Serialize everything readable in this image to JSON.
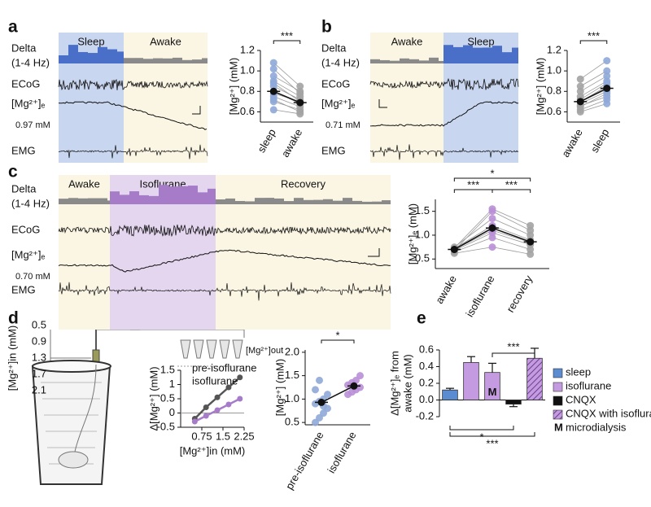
{
  "panel_labels": [
    "a",
    "b",
    "c",
    "d",
    "e"
  ],
  "traces": {
    "a": {
      "delta": "Delta",
      "band": "(1-4 Hz)",
      "ecog": "ECoG",
      "mg": "[Mg²⁺]ₑ",
      "baseline": "0.97 mM",
      "emg": "EMG",
      "states": [
        "Sleep",
        "Awake"
      ]
    },
    "b": {
      "delta": "Delta",
      "band": "(1-4 Hz)",
      "ecog": "ECoG",
      "mg": "[Mg²⁺]ₑ",
      "baseline": "0.71 mM",
      "emg": "EMG",
      "states": [
        "Awake",
        "Sleep"
      ]
    },
    "c": {
      "delta": "Delta",
      "band": "(1-4 Hz)",
      "ecog": "ECoG",
      "mg": "[Mg²⁺]ₑ",
      "baseline": "0.70 mM",
      "emg": "EMG",
      "states": [
        "Awake",
        "Isoflurane",
        "Recovery"
      ]
    }
  },
  "diagram": {
    "inflow_label": "[Mg²⁺]in (mM)",
    "inflow_ticks": [
      "0.5",
      "0.9",
      "1.3",
      "1.7",
      "2.1"
    ],
    "outflow_label": "[Mg²⁺]out"
  },
  "chart_data": [
    {
      "type": "dot",
      "ylabel": "[Mg²⁺] (mM)",
      "categories": [
        "sleep",
        "awake"
      ],
      "paired": true,
      "colors": [
        "#8fa8d8",
        "#a3a3a3"
      ],
      "points": [
        [
          0.62,
          0.7,
          0.75,
          0.78,
          0.8,
          0.85,
          0.9,
          0.95,
          1.02,
          1.08,
          0.72,
          0.88
        ],
        [
          0.58,
          0.62,
          0.65,
          0.7,
          0.68,
          0.72,
          0.75,
          0.8,
          0.78,
          0.85,
          0.6,
          0.7
        ]
      ],
      "values": [
        0.8,
        0.69
      ],
      "errors": [
        0.02,
        0.02
      ],
      "ylim": [
        0.5,
        1.2
      ],
      "yticks": [
        0.6,
        0.8,
        {
          "value": 1,
          "label": "1.0"
        },
        1.2
      ],
      "significance": [
        "***"
      ]
    },
    {
      "type": "dot",
      "ylabel": "[Mg²⁺] (mM)",
      "categories": [
        "awake",
        "sleep"
      ],
      "paired": true,
      "colors": [
        "#a3a3a3",
        "#8fa8d8"
      ],
      "points": [
        [
          0.6,
          0.62,
          0.65,
          0.68,
          0.7,
          0.72,
          0.75,
          0.8,
          0.85,
          0.92,
          0.66,
          0.7
        ],
        [
          0.68,
          0.72,
          0.78,
          0.8,
          0.85,
          0.88,
          0.9,
          0.95,
          1.0,
          1.1,
          0.75,
          0.82
        ]
      ],
      "values": [
        0.7,
        0.83
      ],
      "errors": [
        0.02,
        0.02
      ],
      "ylim": [
        0.5,
        1.2
      ],
      "yticks": [
        0.6,
        0.8,
        {
          "value": 1,
          "label": "1.0"
        },
        1.2
      ],
      "significance": [
        "***"
      ]
    },
    {
      "type": "dot",
      "ylabel": "[Mg²⁺]ₑ (mM)",
      "categories": [
        "awake",
        "isoflurane",
        "recovery"
      ],
      "paired": true,
      "colors": [
        "#a3a3a3",
        "#b98fd6",
        "#a3a3a3"
      ],
      "points": [
        [
          0.62,
          0.65,
          0.68,
          0.7,
          0.72,
          0.75,
          0.68,
          0.73
        ],
        [
          0.75,
          0.95,
          1.05,
          1.1,
          1.2,
          1.35,
          1.5,
          1.55
        ],
        [
          0.6,
          0.7,
          0.8,
          0.85,
          0.9,
          1.0,
          1.1,
          1.2
        ]
      ],
      "values": [
        0.7,
        1.15,
        0.86
      ],
      "errors": [
        0.03,
        0.08,
        0.06
      ],
      "ylim": [
        0.3,
        1.75
      ],
      "yticks": [
        0.5,
        {
          "value": 1,
          "label": "1.0"
        },
        1.5
      ],
      "significance": [
        "*",
        "***",
        "***"
      ]
    },
    {
      "type": "line",
      "xlabel": "[Mg²⁺]in (mM)",
      "ylabel": "Δ[Mg²⁺] (mM)",
      "x": [
        0.5,
        0.9,
        1.3,
        1.7,
        2.1
      ],
      "series": [
        {
          "name": "pre-isoflurane",
          "color": "#555555",
          "values": [
            -0.2,
            0.2,
            0.55,
            0.9,
            1.25
          ]
        },
        {
          "name": "isoflurane",
          "color": "#a67cc8",
          "values": [
            -0.3,
            -0.1,
            0.1,
            0.3,
            0.5
          ]
        }
      ],
      "xlim": [
        0,
        2.25
      ],
      "ylim": [
        -0.5,
        1.5
      ],
      "xticks": [
        0.75,
        1.5,
        2.25
      ],
      "yticks": [
        -0.5,
        0,
        0.5,
        1,
        1.5
      ]
    },
    {
      "type": "dot",
      "ylabel": "[Mg²⁺] (mM)",
      "categories": [
        "pre-isoflurane",
        "isoflurane"
      ],
      "paired": false,
      "colors": [
        "#8fa8d8",
        "#b98fd6"
      ],
      "points": [
        [
          0.5,
          0.6,
          0.7,
          0.8,
          0.9,
          0.95,
          1.0,
          1.1,
          1.2,
          1.4,
          0.85
        ],
        [
          1.1,
          1.15,
          1.2,
          1.25,
          1.3,
          1.35,
          1.4,
          1.5
        ]
      ],
      "values": [
        0.93,
        1.28
      ],
      "errors": [
        0.07,
        0.05
      ],
      "ylim": [
        0.45,
        2.05
      ],
      "yticks": [
        0.5,
        {
          "value": 1,
          "label": "1.0"
        },
        1.5,
        {
          "value": 2,
          "label": "2.0"
        }
      ],
      "significance": [
        "*"
      ]
    },
    {
      "type": "bar",
      "ylabel": [
        "Δ[Mg²⁺]ₑ from",
        "awake (mM)"
      ],
      "categories": [
        null,
        null,
        null,
        null,
        null
      ],
      "values": [
        0.12,
        0.45,
        0.33,
        -0.05,
        0.5
      ],
      "errors": [
        0.02,
        0.07,
        0.11,
        0.03,
        0.12
      ],
      "colors": [
        "#5b8bd0",
        "#c49be0",
        "#c49be0",
        "#111111",
        "#a67cc8"
      ],
      "hatch": [
        false,
        false,
        false,
        false,
        true
      ],
      "bar_labels": [
        null,
        null,
        "M",
        null,
        null
      ],
      "ylim": [
        -0.2,
        0.6
      ],
      "yticks": [
        -0.2,
        {
          "value": 0,
          "label": "0.0"
        },
        0.2,
        0.4,
        0.6
      ],
      "significance": [
        "***",
        "*",
        "***"
      ],
      "legend": [
        {
          "name": "sleep",
          "color": "#5b8bd0"
        },
        {
          "name": "isoflurane",
          "color": "#c49be0"
        },
        {
          "name": "CNQX",
          "color": "#111111"
        },
        {
          "name": "CNQX with isoflurane",
          "color": "#a67cc8",
          "hatch": true
        },
        {
          "marker": "M",
          "name": "microdialysis"
        }
      ]
    }
  ]
}
